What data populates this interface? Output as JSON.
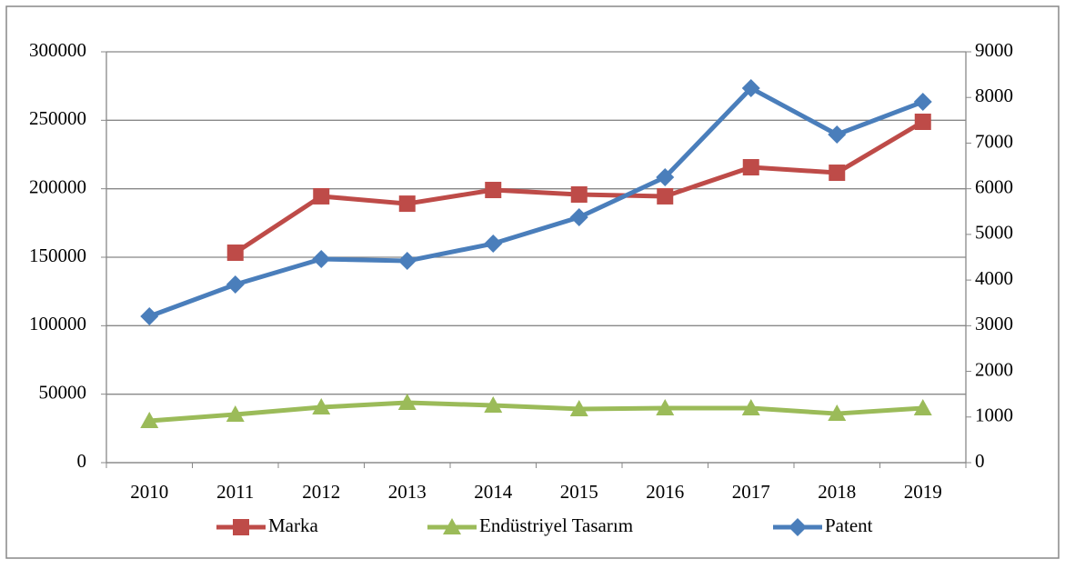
{
  "chart_data": {
    "type": "line",
    "categories": [
      "2010",
      "2011",
      "2012",
      "2013",
      "2014",
      "2015",
      "2016",
      "2017",
      "2018",
      "2019"
    ],
    "series": [
      {
        "name": "Marka",
        "color": "#be4b48",
        "marker": "square",
        "values": [
          null,
          153300,
          194500,
          189100,
          199100,
          195800,
          194500,
          215700,
          211700,
          248900
        ]
      },
      {
        "name": "Endüstriyel Tasarım",
        "color": "#9bbb59",
        "marker": "triangle",
        "values": [
          30500,
          35200,
          40500,
          43800,
          41800,
          39200,
          39800,
          39800,
          35800,
          39800
        ]
      },
      {
        "name": "Patent",
        "color": "#4a7ebb",
        "marker": "diamond",
        "axis": "y2",
        "values": [
          3206,
          3902,
          4460,
          4420,
          4798,
          5376,
          6252,
          8203,
          7188,
          7904
        ]
      }
    ],
    "ylim": [
      0,
      300000
    ],
    "yticks": [
      0,
      50000,
      100000,
      150000,
      200000,
      250000,
      300000
    ],
    "y2lim": [
      0,
      9000
    ],
    "y2ticks": [
      0,
      1000,
      2000,
      3000,
      4000,
      5000,
      6000,
      7000,
      8000,
      9000
    ],
    "grid": true,
    "legend": "bottom"
  }
}
